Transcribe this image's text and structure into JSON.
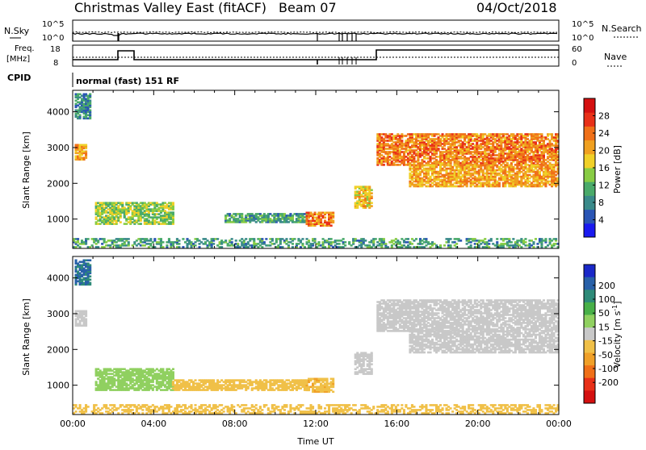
{
  "header": {
    "station": "Christmas Valley East (fitACF)",
    "beam": "Beam 07",
    "date": "04/Oct/2018"
  },
  "strips": {
    "nsky_label": "N.Sky",
    "nsearch_label": "N.Search",
    "noise_ticks": [
      "10^5",
      "10^0"
    ],
    "freq_label_top": "Freq.",
    "freq_label_bottom": "[MHz]",
    "freq_ticks": [
      "18",
      "8"
    ],
    "nave_label": "Nave",
    "nave_ticks": [
      "60",
      "0"
    ],
    "cpid_label": "CPID",
    "cpid_text": "normal (fast) 151 RF"
  },
  "chart_data": [
    {
      "type": "heatmap",
      "name": "power",
      "ylabel": "Slant Range [km]",
      "yticks": [
        1000,
        2000,
        3000,
        4000
      ],
      "ylim": [
        180,
        4600
      ],
      "xlim": [
        0,
        24
      ],
      "xticks": [
        "00:00",
        "04:00",
        "08:00",
        "12:00",
        "16:00",
        "20:00",
        "00:00"
      ],
      "colorbar": {
        "label": "Power [dB]",
        "ticks": [
          "4",
          "8",
          "12",
          "16",
          "20",
          "24",
          "28"
        ],
        "colors": [
          "#1a1af0",
          "#2a55b4",
          "#3a8a8a",
          "#4aaa6a",
          "#88cc44",
          "#f0d028",
          "#f0a020",
          "#f07018",
          "#e83018",
          "#d41010"
        ]
      },
      "regions": [
        {
          "t0": 0.1,
          "t1": 0.7,
          "r0": 2650,
          "r1": 3100,
          "level": 20
        },
        {
          "t0": 0.1,
          "t1": 0.8,
          "r0": 3800,
          "r1": 4500,
          "level": 8
        },
        {
          "t0": 1.1,
          "t1": 4.9,
          "r0": 850,
          "r1": 1450,
          "level": 14
        },
        {
          "t0": 7.5,
          "t1": 11.5,
          "r0": 900,
          "r1": 1150,
          "level": 10
        },
        {
          "t0": 11.5,
          "t1": 12.8,
          "r0": 800,
          "r1": 1200,
          "level": 22
        },
        {
          "t0": 13.9,
          "t1": 14.7,
          "r0": 1300,
          "r1": 1900,
          "level": 18
        },
        {
          "t0": 15.0,
          "t1": 24.0,
          "r0": 2500,
          "r1": 3400,
          "level": 22
        },
        {
          "t0": 16.6,
          "t1": 24.0,
          "r0": 1900,
          "r1": 2500,
          "level": 20
        },
        {
          "t0": 0.0,
          "t1": 24.0,
          "r0": 200,
          "r1": 450,
          "level": 10
        }
      ]
    },
    {
      "type": "heatmap",
      "name": "velocity",
      "ylabel": "Slant Range [km]",
      "xlabel": "Time UT",
      "yticks": [
        1000,
        2000,
        3000,
        4000
      ],
      "ylim": [
        180,
        4600
      ],
      "xlim": [
        0,
        24
      ],
      "xticks": [
        "00:00",
        "04:00",
        "08:00",
        "12:00",
        "16:00",
        "20:00",
        "00:00"
      ],
      "colorbar": {
        "label": "Velocity [m s^-1]",
        "ticks": [
          "200",
          "100",
          "50",
          "15",
          "-15",
          "-50",
          "-100",
          "-200"
        ],
        "colors": [
          "#1a28c8",
          "#2860a8",
          "#2e8a78",
          "#48b048",
          "#90d060",
          "#c8c8c8",
          "#f0c048",
          "#f0a028",
          "#f07018",
          "#e83018",
          "#d41010"
        ]
      },
      "regions": [
        {
          "t0": 0.1,
          "t1": 0.7,
          "r0": 2650,
          "r1": 3100,
          "level": 0
        },
        {
          "t0": 0.1,
          "t1": 0.8,
          "r0": 3800,
          "r1": 4500,
          "level": 150
        },
        {
          "t0": 1.1,
          "t1": 4.9,
          "r0": 850,
          "r1": 1450,
          "level": 30
        },
        {
          "t0": 4.9,
          "t1": 11.5,
          "r0": 850,
          "r1": 1150,
          "level": -30
        },
        {
          "t0": 11.5,
          "t1": 12.8,
          "r0": 800,
          "r1": 1200,
          "level": -40
        },
        {
          "t0": 13.9,
          "t1": 14.7,
          "r0": 1300,
          "r1": 1900,
          "level": 0
        },
        {
          "t0": 15.0,
          "t1": 24.0,
          "r0": 2500,
          "r1": 3400,
          "level": 0
        },
        {
          "t0": 16.6,
          "t1": 24.0,
          "r0": 1900,
          "r1": 2500,
          "level": 0
        },
        {
          "t0": 0.0,
          "t1": 24.0,
          "r0": 200,
          "r1": 450,
          "level": -30
        }
      ]
    }
  ]
}
